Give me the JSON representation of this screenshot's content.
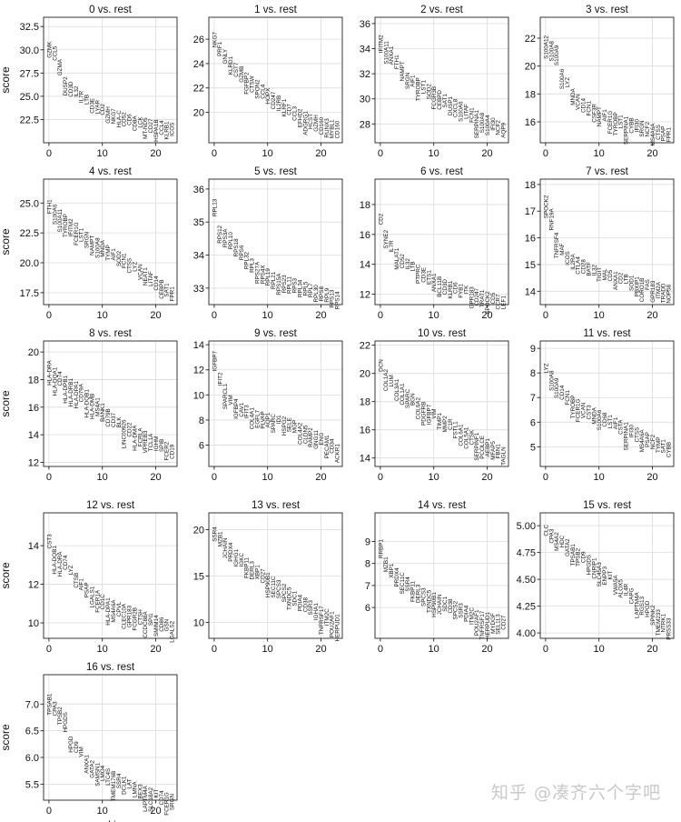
{
  "chart_data": [
    {
      "type": "scatter",
      "title": "0 vs. rest",
      "ylabel": "score",
      "xlabel": "",
      "xlim": [
        -1,
        24
      ],
      "ylim": [
        20.0,
        33.5
      ],
      "xticks": [
        0,
        10,
        20
      ],
      "yticks": [
        22.5,
        25.0,
        27.5,
        30.0,
        32.5
      ],
      "genes": [
        "GZMK",
        "CCL5",
        "GZMA",
        "DUSP2",
        "CD3D",
        "IL32",
        "IL7R",
        "LTB",
        "CD3E",
        "LYAR",
        "CD2",
        "GZMH",
        "NKG7",
        "HLA-C",
        "CD52",
        "CD6",
        "CD8A",
        "LCK",
        "MT-ND5",
        "CD27",
        "HSPA1B",
        "CCL4",
        "KLRB1",
        "ICOS"
      ],
      "values": [
        30.9,
        30.4,
        29.0,
        27.1,
        26.6,
        26.1,
        25.6,
        25.2,
        24.8,
        24.6,
        24.2,
        23.9,
        23.7,
        23.5,
        23.3,
        23.1,
        22.9,
        22.8,
        22.7,
        22.6,
        22.5,
        22.4,
        22.3,
        22.2
      ]
    },
    {
      "type": "scatter",
      "title": "1 vs. rest",
      "ylabel": "",
      "xlabel": "",
      "xlim": [
        -1,
        24
      ],
      "ylim": [
        17.5,
        27.8
      ],
      "xticks": [
        0,
        10,
        20
      ],
      "yticks": [
        20,
        22,
        24,
        26
      ],
      "genes": [
        "NKG7",
        "PRF1",
        "GNLY",
        "KLRD1",
        "CST7",
        "GZMB",
        "FGFBP2",
        "CTSW",
        "SPON2",
        "CCL4",
        "HOPX",
        "CD247",
        "IL2RB",
        "KLRF1",
        "CD7",
        "CCL3",
        "EFHD2",
        "ADGRG1",
        "HCST",
        "GZMH",
        "CD160",
        "RUNX3",
        "MYBL1",
        "CD160"
      ],
      "values": [
        26.6,
        25.8,
        25.2,
        24.6,
        24.1,
        23.8,
        23.3,
        23.0,
        22.7,
        22.3,
        22.0,
        21.7,
        21.4,
        21.1,
        20.7,
        20.5,
        20.3,
        20.1,
        19.9,
        19.8,
        19.6,
        19.5,
        19.4,
        19.3
      ]
    },
    {
      "type": "scatter",
      "title": "2 vs. rest",
      "ylabel": "",
      "xlabel": "",
      "xlim": [
        -1,
        24
      ],
      "ylim": [
        26.5,
        36.5
      ],
      "xticks": [
        0,
        10,
        20
      ],
      "yticks": [
        28,
        30,
        32,
        34,
        36
      ],
      "genes": [
        "IFITM2",
        "S100A11",
        "ANXA1",
        "FTH1",
        "NAMPT",
        "SRGN",
        "AIF1",
        "TYROBP",
        "LST1",
        "SOD2",
        "FCGR3B",
        "CEBPD",
        "SAT1",
        "DUSP1",
        "CXCL8",
        "S100A6",
        "LITAF",
        "FCN1",
        "SERPINA1",
        "S100A8",
        "S100A4",
        "IFI30",
        "NCF2",
        "AQP9"
      ],
      "values": [
        35.1,
        34.6,
        34.2,
        33.5,
        33.0,
        32.1,
        31.9,
        31.7,
        31.5,
        31.2,
        31.0,
        30.7,
        30.4,
        30.2,
        30.0,
        29.8,
        29.6,
        29.3,
        29.1,
        28.9,
        28.7,
        28.5,
        28.3,
        28.1
      ]
    },
    {
      "type": "scatter",
      "title": "3 vs. rest",
      "ylabel": "",
      "xlabel": "",
      "xlim": [
        -1,
        24
      ],
      "ylim": [
        14.5,
        23.5
      ],
      "xticks": [
        0,
        10,
        20
      ],
      "yticks": [
        16,
        18,
        20,
        22
      ],
      "genes": [
        "S100A12",
        "S100A8",
        "S100A9",
        "S100A6",
        "LYZ",
        "MNDA",
        "VCAN",
        "CD14",
        "FCN1",
        "CSF3R",
        "NAMPT",
        "AIF1",
        "FCER1G",
        "TYROBP",
        "LST1",
        "SERPINA1",
        "CYBB",
        "IFI30",
        "SRGN",
        "NCF2",
        "MS4A6A",
        "CTSS",
        "PSAP",
        "FPR1"
      ],
      "values": [
        22.2,
        21.8,
        21.5,
        19.8,
        19.2,
        18.4,
        18.0,
        17.7,
        17.5,
        17.3,
        17.1,
        16.9,
        16.8,
        16.7,
        16.5,
        16.4,
        16.3,
        16.2,
        16.1,
        16.0,
        15.9,
        15.8,
        15.7,
        15.6
      ]
    },
    {
      "type": "scatter",
      "title": "4 vs. rest",
      "ylabel": "score",
      "xlabel": "",
      "xlim": [
        -1,
        24
      ],
      "ylim": [
        16.5,
        27.0
      ],
      "xticks": [
        0,
        10,
        20
      ],
      "yticks": [
        17.5,
        20.0,
        22.5,
        25.0
      ],
      "genes": [
        "FTH1",
        "S100A6",
        "S100A11",
        "TYROBP",
        "IFITM2",
        "FCER1G",
        "LST1",
        "SRGN",
        "NAMPT",
        "S100A8",
        "MNDA",
        "TYMP",
        "AIF1",
        "SOD2",
        "FCN1",
        "CTSS",
        "LYZ",
        "VCAN",
        "NEAT1",
        "LITAF",
        "CD14",
        "CEBPB",
        "SAT1",
        "FPR1"
      ],
      "values": [
        25.3,
        24.9,
        24.5,
        24.1,
        23.7,
        23.4,
        22.9,
        22.6,
        22.3,
        22.1,
        21.9,
        21.5,
        21.2,
        21.0,
        20.8,
        20.4,
        20.1,
        19.9,
        19.6,
        19.3,
        18.9,
        18.6,
        18.3,
        18.0
      ]
    },
    {
      "type": "scatter",
      "title": "5 vs. rest",
      "ylabel": "",
      "xlabel": "",
      "xlim": [
        -1,
        24
      ],
      "ylim": [
        32.5,
        36.3
      ],
      "xticks": [
        0,
        10,
        20
      ],
      "yticks": [
        33,
        34,
        35,
        36
      ],
      "genes": [
        "RPL13",
        "RPS12",
        "RPS3A",
        "RPL10",
        "RPS18",
        "RPS6",
        "RPL32",
        "RPL3",
        "RPS27A",
        "RPS4X",
        "RPL19",
        "RPL21",
        "RPS15A",
        "RPS23",
        "RPL11",
        "RPS3",
        "RPL34",
        "RPL5",
        "RPL7",
        "RPL30",
        "RPS8",
        "RPL9",
        "RPS13",
        "RPS14"
      ],
      "values": [
        35.7,
        34.9,
        34.8,
        34.7,
        34.5,
        34.3,
        34.1,
        33.9,
        33.8,
        33.7,
        33.6,
        33.5,
        33.45,
        33.4,
        33.35,
        33.3,
        33.25,
        33.2,
        33.15,
        33.1,
        33.05,
        33.0,
        32.95,
        32.9
      ]
    },
    {
      "type": "scatter",
      "title": "6 vs. rest",
      "ylabel": "",
      "xlabel": "",
      "xlim": [
        -1,
        24
      ],
      "ylim": [
        11.3,
        19.7
      ],
      "xticks": [
        0,
        10,
        20
      ],
      "yticks": [
        12,
        14,
        16,
        18
      ],
      "genes": [
        "CD2",
        "SYNE2",
        "IL7R",
        "MALAT1",
        "CD52",
        "IL32",
        "LTB",
        "PTPRC",
        "CD3E",
        "ETS1",
        "ANXA1",
        "BCL11B",
        "CD3D",
        "KLRB1",
        "CD6",
        "FYB1",
        "ITK",
        "GPR183",
        "CD247",
        "TRAT1",
        "SPOCK2",
        "CD5",
        "CCR7",
        "LEF1"
      ],
      "values": [
        17.4,
        16.3,
        15.6,
        15.1,
        14.7,
        14.4,
        14.2,
        14.0,
        13.8,
        13.6,
        13.4,
        13.2,
        13.0,
        12.9,
        12.8,
        12.7,
        12.6,
        12.5,
        12.4,
        12.3,
        12.2,
        12.1,
        12.0,
        11.9
      ]
    },
    {
      "type": "scatter",
      "title": "7 vs. rest",
      "ylabel": "",
      "xlabel": "",
      "xlim": [
        -1,
        24
      ],
      "ylim": [
        13.5,
        18.2
      ],
      "xticks": [
        0,
        10,
        20
      ],
      "yticks": [
        14,
        15,
        16,
        17,
        18
      ],
      "genes": [
        "SPOCK2",
        "RNF19A",
        "TNFRSF4",
        "MAF",
        "ICOS",
        "IL2RA",
        "CTLA4",
        "CD28",
        "BATF",
        "IL32",
        "TIGIT",
        "MAL",
        "CD5",
        "ANXA1",
        "CD2",
        "LTB",
        "SOD1",
        "PBXIP1",
        "CORO1B",
        "FAS",
        "GPR183",
        "ITM2A",
        "TRADD",
        "NOP58"
      ],
      "values": [
        17.6,
        17.1,
        16.2,
        15.8,
        15.5,
        15.4,
        15.3,
        15.2,
        15.1,
        15.0,
        14.9,
        14.85,
        14.8,
        14.75,
        14.7,
        14.65,
        14.6,
        14.55,
        14.5,
        14.45,
        14.4,
        14.35,
        14.3,
        14.25
      ]
    },
    {
      "type": "scatter",
      "title": "8 vs. rest",
      "ylabel": "score",
      "xlabel": "",
      "xlim": [
        -1,
        24
      ],
      "ylim": [
        11.7,
        20.8
      ],
      "xticks": [
        0,
        10,
        20
      ],
      "yticks": [
        12,
        14,
        16,
        18,
        20
      ],
      "genes": [
        "HLA-DRA",
        "HLA-DQA1",
        "CD74",
        "HLA-DPB1",
        "HLA-DRB1",
        "HLA-DPA1",
        "CD79A",
        "HLA-DQB1",
        "HLA-DMB",
        "MS4A1",
        "BANK1",
        "CD79B",
        "CD37",
        "BLK",
        "LINC00926",
        "CD22",
        "HLA-DMA",
        "FCRLA",
        "VPREB3",
        "TCL1A",
        "IGHM",
        "SPIB",
        "FCER2",
        "CD19"
      ],
      "values": [
        19.4,
        18.9,
        18.6,
        18.3,
        18.1,
        17.9,
        17.7,
        17.3,
        17.0,
        16.7,
        16.3,
        15.9,
        15.6,
        15.3,
        15.1,
        14.9,
        14.7,
        14.5,
        14.3,
        14.1,
        13.9,
        13.7,
        13.5,
        13.3
      ]
    },
    {
      "type": "scatter",
      "title": "9 vs. rest",
      "ylabel": "",
      "xlabel": "",
      "xlim": [
        -1,
        24
      ],
      "ylim": [
        4.3,
        14.3
      ],
      "xticks": [
        0,
        10,
        20
      ],
      "yticks": [
        6,
        8,
        10,
        12,
        14
      ],
      "genes": [
        "IGFBP7",
        "IFIT2",
        "SPARCL1",
        "VIM",
        "IGFBP4",
        "CAV1",
        "IFIT3",
        "COL4A1",
        "EGFL7",
        "PLVAP",
        "AQP1",
        "SPARC",
        "ID1",
        "HSPG2",
        "SELE",
        "MGP",
        "COL4A2",
        "CLDN5",
        "RAMP2",
        "GNG11",
        "ENG",
        "PECAM1",
        "CD34",
        "ACKR1"
      ],
      "values": [
        13.5,
        11.8,
        10.9,
        10.0,
        9.7,
        9.4,
        9.2,
        9.0,
        8.8,
        8.7,
        8.6,
        8.5,
        8.4,
        8.3,
        8.2,
        8.0,
        7.8,
        7.6,
        7.4,
        7.2,
        7.0,
        6.8,
        6.5,
        6.1
      ]
    },
    {
      "type": "scatter",
      "title": "10 vs. rest",
      "ylabel": "",
      "xlabel": "",
      "xlim": [
        -1,
        24
      ],
      "ylim": [
        13.4,
        22.3
      ],
      "xticks": [
        0,
        10,
        20
      ],
      "yticks": [
        14,
        16,
        18,
        20,
        22
      ],
      "genes": [
        "DCN",
        "COL1A2",
        "LUM",
        "COL3A1",
        "COL1A1",
        "SPARC",
        "BGN",
        "COL6A2",
        "PDGFRB",
        "IGFBP7",
        "VIM",
        "TIMP1",
        "MMP2",
        "C1R",
        "FSTL1",
        "COL6A1",
        "COL5A1",
        "CTSK",
        "SERPINF1",
        "PCOLCE",
        "AEBP1",
        "MFAP5",
        "FBN1",
        "TAGLN"
      ],
      "values": [
        21.0,
        20.3,
        19.9,
        19.6,
        19.3,
        18.9,
        18.6,
        18.3,
        18.0,
        17.8,
        17.5,
        17.2,
        17.0,
        16.8,
        16.6,
        16.4,
        16.2,
        16.0,
        15.8,
        15.6,
        15.4,
        15.2,
        15.0,
        14.8
      ]
    },
    {
      "type": "scatter",
      "title": "11 vs. rest",
      "ylabel": "",
      "xlabel": "",
      "xlim": [
        -1,
        24
      ],
      "ylim": [
        4.2,
        9.3
      ],
      "xticks": [
        0,
        10,
        20
      ],
      "yticks": [
        5,
        6,
        7,
        8,
        9
      ],
      "genes": [
        "LYZ",
        "S100A8",
        "S100A9",
        "CD14",
        "FCN1",
        "TYROBP",
        "FCER1G",
        "VCAN",
        "CST3",
        "MNDA",
        "S100A6",
        "CD68",
        "LST1",
        "AIF1",
        "CSTA",
        "SERPINA1",
        "IFI30",
        "CTSS",
        "MS4A6A",
        "PSAP",
        "NCF2",
        "TYMP",
        "SAT1",
        "CYBB"
      ],
      "values": [
        8.4,
        8.1,
        7.8,
        7.5,
        7.3,
        7.1,
        6.95,
        6.8,
        6.7,
        6.6,
        6.5,
        6.4,
        6.3,
        6.2,
        6.1,
        6.0,
        5.9,
        5.8,
        5.7,
        5.6,
        5.5,
        5.4,
        5.3,
        5.2
      ]
    },
    {
      "type": "scatter",
      "title": "12 vs. rest",
      "ylabel": "score",
      "xlabel": "",
      "xlim": [
        -1,
        24
      ],
      "ylim": [
        9.2,
        15.7
      ],
      "xticks": [
        0,
        10,
        20
      ],
      "yticks": [
        10,
        12,
        14
      ],
      "genes": [
        "CST3",
        "HLA-DQB1",
        "HLA-DRA",
        "CD74",
        "LYZ",
        "CTSB",
        "AIF1",
        "PSAP",
        "LGALS1",
        "FCER1A",
        "CD1C",
        "HLA-DPA1",
        "MS4A6A",
        "CPVL",
        "CLEC10A",
        "GPR183",
        "FCGR2B",
        "CTSH",
        "CCDC88A",
        "SPI1",
        "SMIM14",
        "CD86",
        "GSN",
        "LGALS2"
      ],
      "values": [
        14.6,
        14.0,
        13.7,
        13.5,
        13.0,
        12.6,
        12.3,
        12.1,
        11.9,
        11.7,
        11.5,
        11.3,
        11.2,
        11.1,
        11.0,
        10.9,
        10.8,
        10.7,
        10.6,
        10.5,
        10.4,
        10.3,
        10.2,
        10.1
      ]
    },
    {
      "type": "scatter",
      "title": "13 vs. rest",
      "ylabel": "",
      "xlabel": "",
      "xlim": [
        -1,
        24
      ],
      "ylim": [
        8.3,
        21.8
      ],
      "xticks": [
        0,
        10,
        20
      ],
      "yticks": [
        10,
        15,
        20
      ],
      "genes": [
        "SSR4",
        "MZB1",
        "JCHAIN",
        "PRDX4",
        "IGHG1",
        "IGKC",
        "FKBP11",
        "DERL3",
        "XBP1",
        "CD27",
        "HSP90B1",
        "SEC11C",
        "SPCS3",
        "SPCS2",
        "TXNDC5",
        "SDC1",
        "PDIA4",
        "CD38",
        "SSR3",
        "IGHA1",
        "TNFRSF17",
        "ITM2C",
        "POU2AF1",
        "HERPUD1"
      ],
      "values": [
        20.3,
        19.8,
        19.1,
        18.6,
        17.9,
        17.5,
        17.0,
        16.6,
        16.2,
        15.8,
        15.4,
        15.0,
        14.6,
        14.2,
        13.8,
        13.4,
        13.0,
        12.7,
        12.4,
        12.1,
        11.8,
        11.5,
        11.2,
        10.9
      ]
    },
    {
      "type": "scatter",
      "title": "14 vs. rest",
      "ylabel": "",
      "xlabel": "",
      "xlim": [
        -1,
        24
      ],
      "ylim": [
        4.6,
        10.3
      ],
      "xticks": [
        0,
        10,
        20
      ],
      "yticks": [
        6,
        7,
        8,
        9
      ],
      "genes": [
        "RRBP1",
        "MZB1",
        "XBP1",
        "PRDX4",
        "SEC11C",
        "SSR4",
        "FKBP11",
        "DERL3",
        "SPCS3",
        "TXNDC5",
        "HSP90B1",
        "JCHAIN",
        "SDC1",
        "CD38",
        "SPCS2",
        "SSR3",
        "PDIA4",
        "ITM2C",
        "POU2AF1",
        "TNFRSF17",
        "HERPUD1",
        "MYDGF",
        "SEL1L3",
        "CD27"
      ],
      "values": [
        9.1,
        8.3,
        8.0,
        7.8,
        7.6,
        7.4,
        7.2,
        7.05,
        6.9,
        6.8,
        6.7,
        6.6,
        6.5,
        6.4,
        6.3,
        6.2,
        6.1,
        6.0,
        5.9,
        5.85,
        5.8,
        5.75,
        5.7,
        5.65
      ]
    },
    {
      "type": "scatter",
      "title": "15 vs. rest",
      "ylabel": "",
      "xlabel": "",
      "xlim": [
        -1,
        24
      ],
      "ylim": [
        3.95,
        5.12
      ],
      "xticks": [
        0,
        10,
        20
      ],
      "yticks": [
        4.0,
        4.25,
        4.5,
        4.75,
        5.0
      ],
      "genes": [
        "CLC",
        "CPA3",
        "MS4A2",
        "HDC",
        "GATA2",
        "TPSAB1",
        "TPSB2",
        "CD9",
        "HPGDS",
        "CNRIP1",
        "SLC45A3",
        "ENPP3",
        "KIT",
        "VWA5A",
        "ALOX5",
        "IL4R",
        "CAPG",
        "LAPTM4A",
        "RGS13",
        "HPGD",
        "SPINK2",
        "TMEM233",
        "NTRK1",
        "PRSS33"
      ],
      "values": [
        5.01,
        4.97,
        4.94,
        4.91,
        4.88,
        4.83,
        4.79,
        4.76,
        4.73,
        4.7,
        4.66,
        4.62,
        4.58,
        4.54,
        4.5,
        4.46,
        4.42,
        4.38,
        4.34,
        4.3,
        4.26,
        4.22,
        4.18,
        4.14
      ]
    },
    {
      "type": "scatter",
      "title": "16 vs. rest",
      "ylabel": "score",
      "xlabel": "ranking",
      "xlim": [
        -1,
        24
      ],
      "ylim": [
        5.2,
        7.55
      ],
      "xticks": [
        0,
        10,
        20
      ],
      "yticks": [
        5.5,
        6.0,
        6.5,
        7.0
      ],
      "genes": [
        "TPSAB1",
        "CPA3",
        "TPSB2",
        "HPGDS",
        "HPGD",
        "CD9",
        "VIM",
        "ANXA1",
        "GATA2",
        "SAMSN1",
        "LMO4",
        "LTC4S",
        "TMEM176B",
        "SSR4",
        "DCLK1",
        "LAT",
        "LMNA",
        "BEX3",
        "LAPTM4A",
        "SLC18A2",
        "KIT",
        "CD74",
        "FCER1G",
        "SRGN"
      ],
      "values": [
        7.2,
        7.05,
        6.95,
        6.85,
        6.4,
        6.3,
        6.2,
        6.05,
        5.95,
        5.9,
        5.85,
        5.8,
        5.75,
        5.7,
        5.65,
        5.6,
        5.55,
        5.5,
        5.47,
        5.44,
        5.41,
        5.38,
        5.35,
        5.32
      ]
    }
  ],
  "watermark": {
    "text": "知乎 @凑齐六个字吧",
    "color": "#c9c9c9"
  }
}
